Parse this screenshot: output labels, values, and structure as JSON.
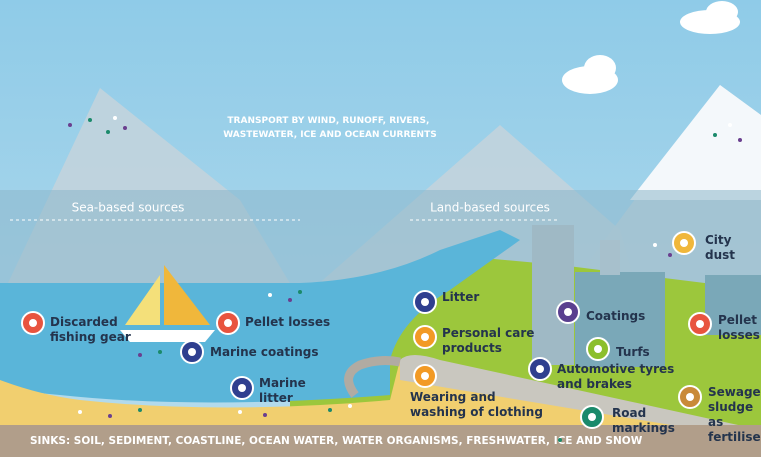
{
  "transport": {
    "lines": [
      "TRANSPORT BY WIND, RUNOFF, RIVERS,",
      "WASTEWATER, ICE AND OCEAN CURRENTS"
    ]
  },
  "sea_based": "Sea-based sources",
  "land_based": "Land-based sources",
  "sources": [
    {
      "lines": [
        "Discarded",
        "fishing gear"
      ]
    },
    {
      "lines": [
        "Pellet losses"
      ]
    },
    {
      "lines": [
        "Marine coatings"
      ]
    },
    {
      "lines": [
        "Marine",
        "litter"
      ]
    },
    {
      "lines": [
        "Litter"
      ]
    },
    {
      "lines": [
        "Personal care",
        "products"
      ]
    },
    {
      "lines": [
        "Wearing and",
        "washing of clothing"
      ]
    },
    {
      "lines": [
        "Coatings"
      ]
    },
    {
      "lines": [
        "Turfs"
      ]
    },
    {
      "lines": [
        "Automotive tyres",
        "and brakes"
      ]
    },
    {
      "lines": [
        "Road",
        "markings"
      ]
    },
    {
      "lines": [
        "City",
        "dust"
      ]
    },
    {
      "lines": [
        "Pellet",
        "losses"
      ]
    },
    {
      "lines": [
        "Sewage",
        "sludge",
        "as",
        "fertiliser"
      ]
    }
  ],
  "sinks": "SINKS: SOIL, SEDIMENT, COASTLINE, OCEAN WATER, WATER ORGANISMS, FRESHWATER, ICE AND SNOW"
}
